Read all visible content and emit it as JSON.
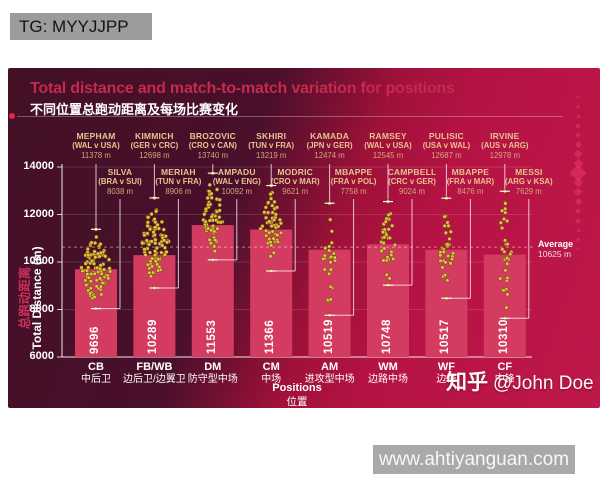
{
  "watermarks": {
    "tg": "TG: MYYJJPP",
    "zhihu_brand": "知乎",
    "zhihu_user": "@John Doe",
    "site": "www.ahtiyanguan.com"
  },
  "header": {
    "title": "Total distance and match-to-match variation for positions",
    "subtitle": "不同位置总跑动距离及每场比赛变化"
  },
  "colors": {
    "title_accent": "#c5294f",
    "card_dark": "#45102a",
    "card_bright": "#b81445",
    "bar": "#d43b60",
    "dot": "#e6c445",
    "dot_edge": "#6e4f12",
    "gold_label": "#e6c48e",
    "axis": "#ffffff"
  },
  "chart_data": {
    "type": "bar",
    "overlay": "beeswarm of individual match distances per position",
    "title": "Total distance and match-to-match variation for positions",
    "xlabel_en": "Positions",
    "xlabel_zh": "位置",
    "ylabel_en": "Total Distance (m)",
    "ylabel_zh": "总跑动距离",
    "ylim": [
      6000,
      14000
    ],
    "yticks": [
      6000,
      8000,
      10000,
      12000,
      14000
    ],
    "grid": "horizontal, faint",
    "legend": "none",
    "average": {
      "label": "Average",
      "value": 10625,
      "value_label": "10625 m"
    },
    "categories": [
      {
        "code": "CB",
        "zh": "中后卫",
        "bar": 9696,
        "max": {
          "player": "MEPHAM",
          "match": "(WAL v USA)",
          "distance": "11378 m",
          "value": 11378
        },
        "min": {
          "player": "SILVA",
          "match": "(BRA v SUI)",
          "distance": "8038 m",
          "value": 8038
        },
        "dots": 95,
        "spread": 17
      },
      {
        "code": "FB/WB",
        "zh": "边后卫/边翼卫",
        "bar": 10289,
        "max": {
          "player": "KIMMICH",
          "match": "(GER v CRC)",
          "distance": "12698 m",
          "value": 12698
        },
        "min": {
          "player": "MERIAH",
          "match": "(TUN v FRA)",
          "distance": "8906 m",
          "value": 8906
        },
        "dots": 85,
        "spread": 15
      },
      {
        "code": "DM",
        "zh": "防守型中场",
        "bar": 11553,
        "max": {
          "player": "BROZOVIC",
          "match": "(CRO v CAN)",
          "distance": "13740 m",
          "value": 13740
        },
        "min": {
          "player": "AMPADU",
          "match": "(WAL v ENG)",
          "distance": "10092 m",
          "value": 10092
        },
        "dots": 58,
        "spread": 11
      },
      {
        "code": "CM",
        "zh": "中场",
        "bar": 11366,
        "max": {
          "player": "SKHIRI",
          "match": "(TUN v FRA)",
          "distance": "13219 m",
          "value": 13219
        },
        "min": {
          "player": "MODRIC",
          "match": "(CRO v MAR)",
          "distance": "9621 m",
          "value": 9621
        },
        "dots": 52,
        "spread": 11
      },
      {
        "code": "AM",
        "zh": "进攻型中场",
        "bar": 10519,
        "max": {
          "player": "KAMADA",
          "match": "(JPN v GER)",
          "distance": "12474 m",
          "value": 12474
        },
        "min": {
          "player": "MBAPPE",
          "match": "(FRA v POL)",
          "distance": "7758 m",
          "value": 7758
        },
        "dots": 26,
        "spread": 7
      },
      {
        "code": "WM",
        "zh": "边路中场",
        "bar": 10748,
        "max": {
          "player": "RAMSEY",
          "match": "(WAL v USA)",
          "distance": "12545 m",
          "value": 12545
        },
        "min": {
          "player": "CAMPBELL",
          "match": "(CRC v GER)",
          "distance": "9024 m",
          "value": 9024
        },
        "dots": 34,
        "spread": 8
      },
      {
        "code": "WF",
        "zh": "边锋",
        "bar": 10517,
        "max": {
          "player": "PULISIC",
          "match": "(USA v WAL)",
          "distance": "12687 m",
          "value": 12687
        },
        "min": {
          "player": "MBAPPE",
          "match": "(FRA v MAR)",
          "distance": "8476 m",
          "value": 8476
        },
        "dots": 30,
        "spread": 8
      },
      {
        "code": "CF",
        "zh": "中锋",
        "bar": 10310,
        "max": {
          "player": "IRVINE",
          "match": "(AUS v ARG)",
          "distance": "12978 m",
          "value": 12978
        },
        "min": {
          "player": "MESSI",
          "match": "(ARG v KSA)",
          "distance": "7629 m",
          "value": 7629
        },
        "dots": 30,
        "spread": 8
      }
    ]
  }
}
